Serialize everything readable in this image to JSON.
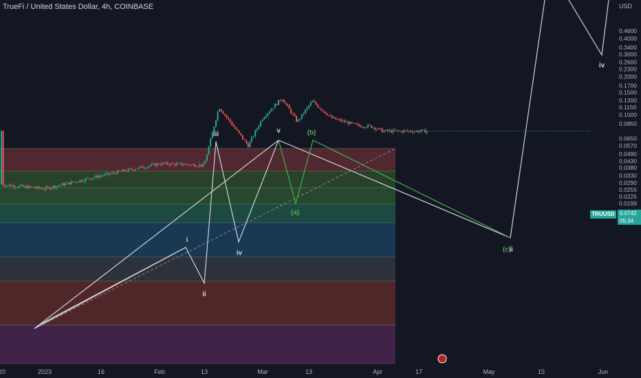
{
  "header": {
    "title": "TrueFi / United States Dollar, 4h, COINBASE"
  },
  "axis": {
    "currency": "USD",
    "price_ticks": [
      "0.4600",
      "0.4000",
      "0.3400",
      "0.3000",
      "0.2600",
      "0.2300",
      "0.2000",
      "0.1700",
      "0.1500",
      "0.1300",
      "0.1150",
      "0.1000",
      "0.0850",
      "0.0742",
      "0.0650",
      "0.0570",
      "0.0490",
      "0.0430",
      "0.0380",
      "0.0330",
      "0.0290",
      "0.0255",
      "0.0225",
      "0.0199"
    ],
    "time_ticks": [
      "20",
      "2023",
      "16",
      "Feb",
      "13",
      "Mar",
      "13",
      "Apr",
      "17",
      "May",
      "15",
      "Jun"
    ]
  },
  "symbol_tag": "TRUUSD",
  "current_price": {
    "value": "0.0742",
    "countdown": "05:34"
  },
  "wave_labels": {
    "i": "i",
    "ii": "ii",
    "iii": "iii",
    "iv": "iv",
    "v": "v",
    "a": "(a)",
    "b": "(b)",
    "c": "(c)",
    "ii_future": "ii",
    "iv_future": "iv"
  },
  "colors": {
    "background": "#131722",
    "up": "#26a69a",
    "down": "#ef5350",
    "wave_white": "#d1d4dc",
    "wave_green": "#4caf50",
    "grid": "#1e2230"
  },
  "chart_data": {
    "type": "candlestick",
    "title": "TrueFi / United States Dollar, 4h, COINBASE",
    "scale": "log",
    "ylim": [
      0.0185,
      0.55
    ],
    "series": [
      {
        "name": "TRUUSD",
        "x": [
          "2022-12-20",
          "2023-01-01",
          "2023-01-16",
          "2023-02-01",
          "2023-02-13",
          "2023-02-17",
          "2023-02-25",
          "2023-03-01",
          "2023-03-06",
          "2023-03-10",
          "2023-03-14",
          "2023-03-20",
          "2023-03-28",
          "2023-04-01",
          "2023-04-05",
          "2023-04-10"
        ],
        "values": [
          0.028,
          0.026,
          0.033,
          0.041,
          0.04,
          0.115,
          0.057,
          0.095,
          0.135,
          0.088,
          0.128,
          0.094,
          0.082,
          0.081,
          0.074,
          0.0742
        ]
      }
    ],
    "wave_points": [
      {
        "label": "i",
        "x": "2023-02-08",
        "y": 0.053
      },
      {
        "label": "ii",
        "x": "2023-02-12",
        "y": 0.039
      },
      {
        "label": "iii",
        "x": "2023-02-15",
        "y": 0.14
      },
      {
        "label": "iv",
        "x": "2023-02-22",
        "y": 0.057
      },
      {
        "label": "v",
        "x": "2023-03-06",
        "y": 0.145
      },
      {
        "label": "(a)",
        "x": "2023-03-09",
        "y": 0.087
      },
      {
        "label": "(b)",
        "x": "2023-03-13",
        "y": 0.143
      },
      {
        "label": "(c)",
        "x": "2023-05-05",
        "y": 0.059
      },
      {
        "label": "iv",
        "x": "2023-06-01",
        "y": 0.32
      }
    ]
  }
}
